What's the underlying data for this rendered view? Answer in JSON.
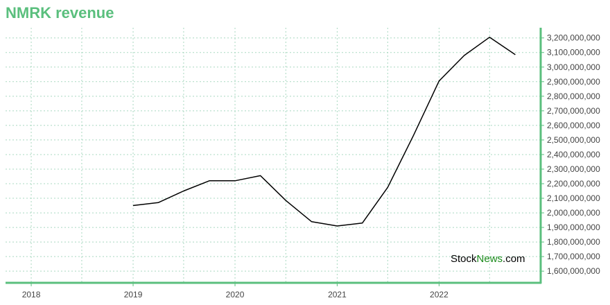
{
  "colors": {
    "accent": "#5abf7d",
    "grid": "#a8d8c0",
    "line": "#000000",
    "tick_text": "#444444",
    "watermark_green": "#1a8a1a"
  },
  "chart_data": {
    "type": "line",
    "title": "NMRK revenue",
    "xlabel": "",
    "ylabel": "",
    "x_ticks": [
      "2018",
      "2019",
      "2020",
      "2021",
      "2022"
    ],
    "x_range": [
      "2017-10-01",
      "2022-12-31"
    ],
    "y_ticks": [
      1600000000,
      1700000000,
      1800000000,
      1900000000,
      2000000000,
      2100000000,
      2200000000,
      2300000000,
      2400000000,
      2500000000,
      2600000000,
      2700000000,
      2800000000,
      2900000000,
      3000000000,
      3100000000,
      3200000000
    ],
    "y_tick_labels": [
      "1,600,000,000",
      "1,700,000,000",
      "1,800,000,000",
      "1,900,000,000",
      "2,000,000,000",
      "2,100,000,000",
      "2,200,000,000",
      "2,300,000,000",
      "2,400,000,000",
      "2,500,000,000",
      "2,600,000,000",
      "2,700,000,000",
      "2,800,000,000",
      "2,900,000,000",
      "3,000,000,000",
      "3,100,000,000",
      "3,200,000,000"
    ],
    "ylim": [
      1520000000,
      3270000000
    ],
    "grid": true,
    "axis_side": "right",
    "series": [
      {
        "x": [
          "2019-01-01",
          "2019-04-01",
          "2019-07-01",
          "2019-10-01",
          "2020-01-01",
          "2020-04-01",
          "2020-07-01",
          "2020-10-01",
          "2021-01-01",
          "2021-04-01",
          "2021-07-01",
          "2021-10-01",
          "2022-01-01",
          "2022-04-01",
          "2022-07-01",
          "2022-10-01"
        ],
        "values": [
          2050000000,
          2070000000,
          2150000000,
          2220000000,
          2220000000,
          2255000000,
          2085000000,
          1940000000,
          1910000000,
          1930000000,
          2175000000,
          2530000000,
          2905000000,
          3080000000,
          3205000000,
          3085000000
        ]
      }
    ]
  },
  "watermark": {
    "part1": "Stock",
    "part2": "News",
    "part3": ".com"
  }
}
